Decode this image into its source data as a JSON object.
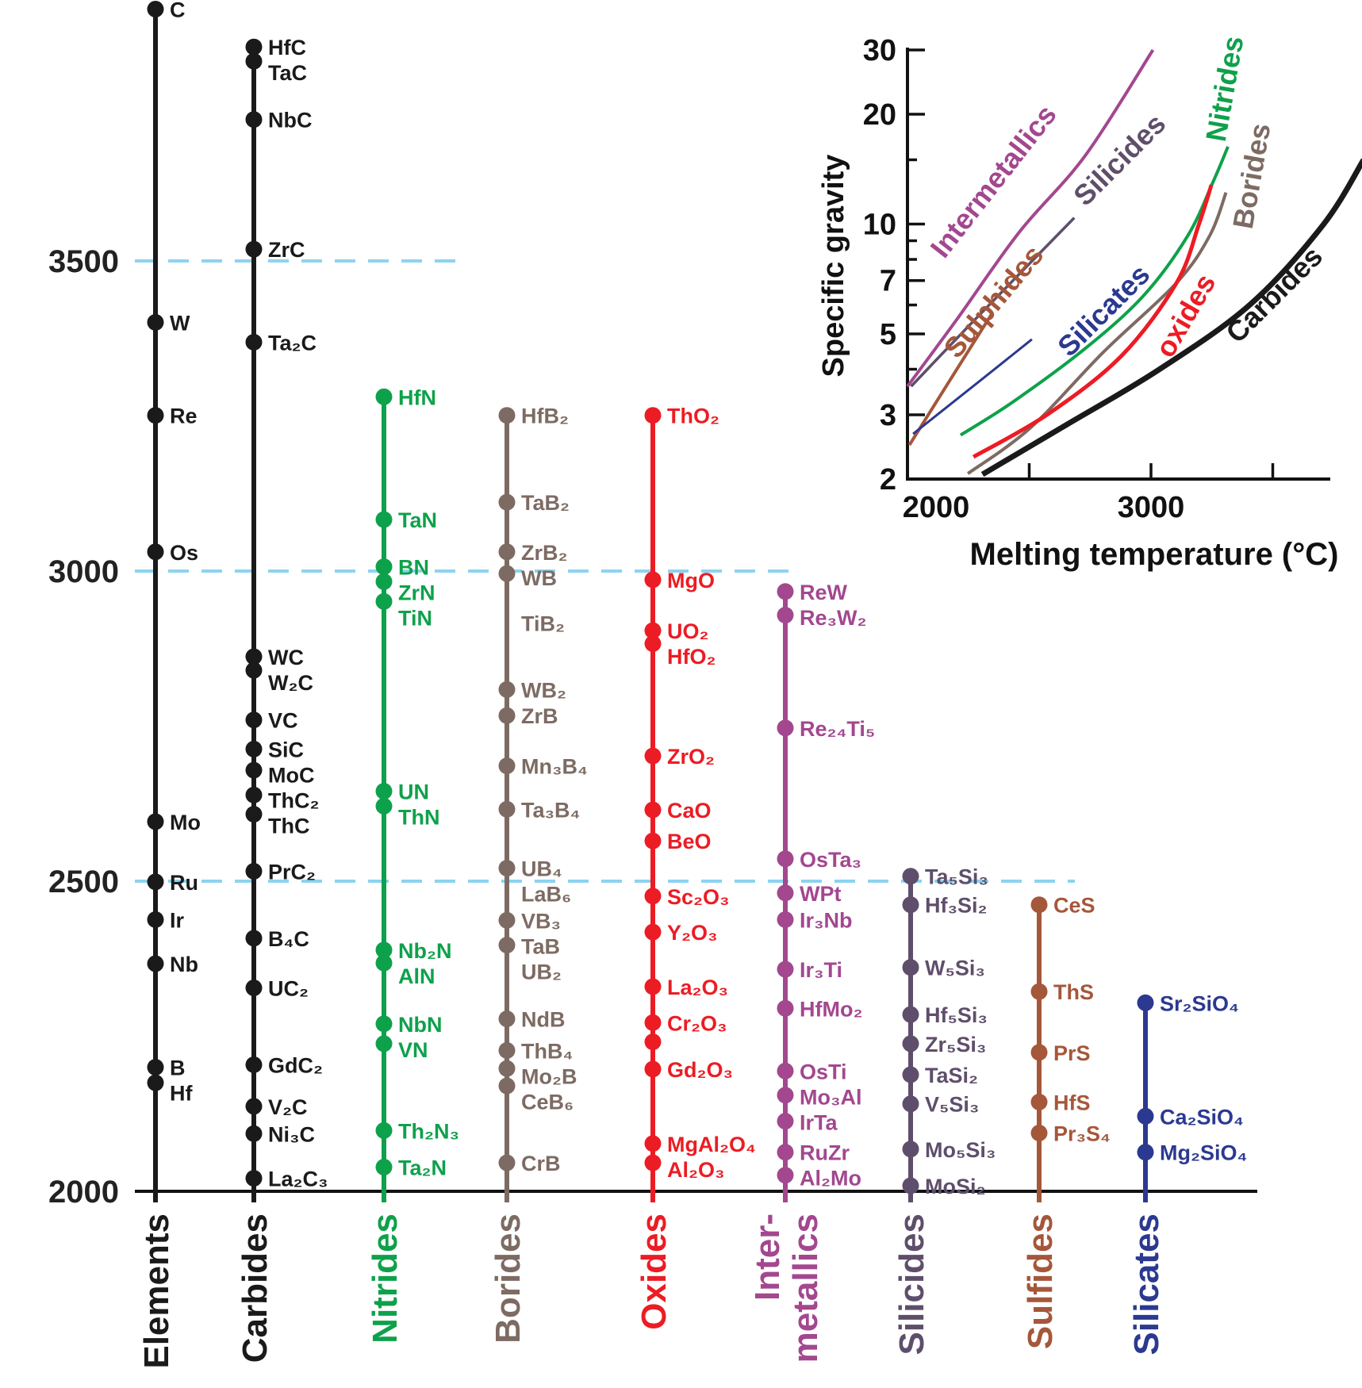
{
  "chart_data": [
    {
      "type": "scatter",
      "title": "",
      "ylabel": "",
      "ylim": [
        2000,
        3900
      ],
      "yticks": [
        2000,
        2500,
        3000,
        3500
      ],
      "dashed_gridlines": [
        3500,
        3000,
        2500
      ],
      "dash_color": "#8dd3f0",
      "categories": [
        {
          "label_lines": [
            "Elements"
          ],
          "color": "#1a1a1a",
          "points": [
            {
              "label": "C",
              "value": 3906
            },
            {
              "label": "W",
              "value": 3401
            },
            {
              "label": "Re",
              "value": 3251
            },
            {
              "label": "Os",
              "value": 3031
            },
            {
              "label": "Mo",
              "value": 2596
            },
            {
              "label": "Ru",
              "value": 2499
            },
            {
              "label": "Ir",
              "value": 2438
            },
            {
              "label": "Nb",
              "value": 2367
            },
            {
              "label": "B",
              "value": 2200
            },
            {
              "label": "Hf",
              "value": 2175
            }
          ]
        },
        {
          "label_lines": [
            "Carbides"
          ],
          "color": "#1a1a1a",
          "points": [
            {
              "label": "HfC",
              "value": 3845
            },
            {
              "label": "TaC",
              "value": 3822
            },
            {
              "label": "NbC",
              "value": 3728
            },
            {
              "label": "ZrC",
              "value": 3519
            },
            {
              "label": "Ta₂C",
              "value": 3369
            },
            {
              "label": "WC",
              "value": 2862
            },
            {
              "label": "W₂C",
              "value": 2840
            },
            {
              "label": "VC",
              "value": 2760
            },
            {
              "label": "SiC",
              "value": 2713
            },
            {
              "label": "MoC",
              "value": 2679
            },
            {
              "label": "ThC₂",
              "value": 2639
            },
            {
              "label": "ThC",
              "value": 2608
            },
            {
              "label": "PrC₂",
              "value": 2516
            },
            {
              "label": "B₄C",
              "value": 2408
            },
            {
              "label": "UC₂",
              "value": 2328
            },
            {
              "label": "GdC₂",
              "value": 2204
            },
            {
              "label": "V₂C",
              "value": 2137
            },
            {
              "label": "Ni₃C",
              "value": 2093
            },
            {
              "label": "La₂C₃",
              "value": 2021
            }
          ]
        },
        {
          "label_lines": [
            "Nitrides"
          ],
          "color": "#0ea14b",
          "points": [
            {
              "label": "HfN",
              "value": 3281
            },
            {
              "label": "TaN",
              "value": 3083
            },
            {
              "label": "BN",
              "value": 3007
            },
            {
              "label": "ZrN",
              "value": 2983
            },
            {
              "label": "TiN",
              "value": 2951
            },
            {
              "label": "UN",
              "value": 2645
            },
            {
              "label": "ThN",
              "value": 2621
            },
            {
              "label": "Nb₂N",
              "value": 2389
            },
            {
              "label": "AlN",
              "value": 2368
            },
            {
              "label": "NbN",
              "value": 2270
            },
            {
              "label": "VN",
              "value": 2238
            },
            {
              "label": "Th₂N₃",
              "value": 2098
            },
            {
              "label": "Ta₂N",
              "value": 2039
            }
          ]
        },
        {
          "label_lines": [
            "Borides"
          ],
          "color": "#7d6b63",
          "points": [
            {
              "label": "HfB₂",
              "value": 3251
            },
            {
              "label": "TaB₂",
              "value": 3111
            },
            {
              "label": "ZrB₂",
              "value": 3031
            },
            {
              "label": "WB",
              "value": 2996
            },
            {
              "label": "TiB₂",
              "value": 2916,
              "marker": false
            },
            {
              "label": "WB₂",
              "value": 2809
            },
            {
              "label": "ZrB",
              "value": 2767
            },
            {
              "label": "Mn₃B₄",
              "value": 2686
            },
            {
              "label": "Ta₃B₄",
              "value": 2616
            },
            {
              "label": "UB₄",
              "value": 2521
            },
            {
              "label": "LaB₆",
              "value": 2505,
              "marker": false
            },
            {
              "label": "VB₃",
              "value": 2437
            },
            {
              "label": "TaB",
              "value": 2418,
              "marker": false
            },
            {
              "label": "UB₂",
              "value": 2397
            },
            {
              "label": "NdB",
              "value": 2278
            },
            {
              "label": "ThB₄",
              "value": 2227
            },
            {
              "label": "Mo₂B",
              "value": 2198
            },
            {
              "label": "CeB₆",
              "value": 2170
            },
            {
              "label": "CrB",
              "value": 2046
            }
          ]
        },
        {
          "label_lines": [
            "Oxides"
          ],
          "color": "#ec1c24",
          "points": [
            {
              "label": "ThO₂",
              "value": 3251
            },
            {
              "label": "MgO",
              "value": 2986
            },
            {
              "label": "UO₂",
              "value": 2904
            },
            {
              "label": "HfO₂",
              "value": 2883
            },
            {
              "label": "ZrO₂",
              "value": 2702
            },
            {
              "label": "CaO",
              "value": 2615
            },
            {
              "label": "BeO",
              "value": 2565
            },
            {
              "label": "Sc₂O₃",
              "value": 2476
            },
            {
              "label": "Y₂O₃",
              "value": 2418
            },
            {
              "label": "La₂O₃",
              "value": 2330
            },
            {
              "label": "Cr₂O₃",
              "value": 2272
            },
            {
              "label": "",
              "value": 2241
            },
            {
              "label": "Gd₂O₃",
              "value": 2197
            },
            {
              "label": "MgAl₂O₄",
              "value": 2077
            },
            {
              "label": "Al₂O₃",
              "value": 2046
            }
          ]
        },
        {
          "label_lines": [
            "Inter-",
            "metallics"
          ],
          "color": "#a3478f",
          "points": [
            {
              "label": "ReW",
              "value": 2967
            },
            {
              "label": "Re₃W₂",
              "value": 2929
            },
            {
              "label": "Re₂₄Ti₅",
              "value": 2747
            },
            {
              "label": "OsTa₃",
              "value": 2536
            },
            {
              "label": "WPt",
              "value": 2481
            },
            {
              "label": "Ir₃Nb",
              "value": 2438
            },
            {
              "label": "Ir₃Ti",
              "value": 2358
            },
            {
              "label": "HfMo₂",
              "value": 2295
            },
            {
              "label": "OsTi",
              "value": 2194
            },
            {
              "label": "Mo₃Al",
              "value": 2155
            },
            {
              "label": "IrTa",
              "value": 2113
            },
            {
              "label": "RuZr",
              "value": 2063
            },
            {
              "label": "Al₂Mo",
              "value": 2026
            }
          ]
        },
        {
          "label_lines": [
            "Silicides"
          ],
          "color": "#5f4e6b",
          "points": [
            {
              "label": "Ta₅Si₃",
              "value": 2508
            },
            {
              "label": "Hf₃Si₂",
              "value": 2462
            },
            {
              "label": "W₅Si₃",
              "value": 2361
            },
            {
              "label": "Hf₅Si₃",
              "value": 2285
            },
            {
              "label": "Zr₅Si₃",
              "value": 2238
            },
            {
              "label": "TaSi₂",
              "value": 2188
            },
            {
              "label": "V₅Si₃",
              "value": 2141
            },
            {
              "label": "Mo₅Si₃",
              "value": 2068
            },
            {
              "label": "MoSi₂",
              "value": 2009
            }
          ]
        },
        {
          "label_lines": [
            "Sulfides"
          ],
          "color": "#a5573a",
          "points": [
            {
              "label": "CeS",
              "value": 2462
            },
            {
              "label": "ThS",
              "value": 2322
            },
            {
              "label": "PrS",
              "value": 2224
            },
            {
              "label": "HfS",
              "value": 2144
            },
            {
              "label": "Pr₃S₄",
              "value": 2094
            }
          ]
        },
        {
          "label_lines": [
            "Silicates"
          ],
          "color": "#2b3990",
          "points": [
            {
              "label": "Sr₂SiO₄",
              "value": 2304
            },
            {
              "label": "Ca₂SiO₄",
              "value": 2121
            },
            {
              "label": "Mg₂SiO₄",
              "value": 2063
            }
          ]
        }
      ]
    },
    {
      "type": "line",
      "title": "",
      "xlabel": "Melting temperature (°C)",
      "ylabel": "Specific gravity",
      "xlim": [
        2000,
        3750
      ],
      "ylim": [
        2,
        30
      ],
      "yscale": "log",
      "xticks": [
        2000,
        2500,
        3000,
        3500
      ],
      "xtick_labels": [
        "2000",
        "",
        "3000",
        ""
      ],
      "yticks": [
        2,
        3,
        4,
        5,
        6,
        7,
        8,
        9,
        10,
        15,
        20,
        30
      ],
      "ytick_labels": [
        "2",
        "3",
        "",
        "5",
        "",
        "7",
        "",
        "",
        "10",
        "",
        "20",
        "30"
      ],
      "grid": false,
      "series": [
        {
          "name": "Intermetallics",
          "color": "#a3478f",
          "points": [
            [
              2000,
              3.59
            ],
            [
              2203,
              5.48
            ],
            [
              2459,
              9.5
            ],
            [
              2730,
              15.4
            ],
            [
              3008,
              30
            ]
          ]
        },
        {
          "name": "Silicides",
          "color": "#5f4e6b",
          "points": [
            [
              2015,
              3.59
            ],
            [
              2278,
              5.48
            ],
            [
              2685,
              10.4
            ]
          ]
        },
        {
          "name": "Sulphides",
          "color": "#a5573a",
          "points": [
            [
              2008,
              2.48
            ],
            [
              2173,
              3.72
            ],
            [
              2346,
              5.67
            ]
          ]
        },
        {
          "name": "Silicates",
          "color": "#2b3990",
          "points": [
            [
              2023,
              2.66
            ],
            [
              2278,
              3.63
            ],
            [
              2511,
              4.83
            ]
          ]
        },
        {
          "name": "Nitrides",
          "color": "#0ea14b",
          "points": [
            [
              2218,
              2.64
            ],
            [
              2429,
              3.24
            ],
            [
              2730,
              4.56
            ],
            [
              2970,
              6.37
            ],
            [
              3151,
              9.29
            ],
            [
              3256,
              13.1
            ],
            [
              3316,
              16.3
            ]
          ]
        },
        {
          "name": "Borides",
          "color": "#7d6b63",
          "points": [
            [
              2248,
              2.07
            ],
            [
              2504,
              2.76
            ],
            [
              2805,
              4.46
            ],
            [
              3105,
              6.9
            ],
            [
              3241,
              9.29
            ],
            [
              3308,
              12.2
            ]
          ]
        },
        {
          "name": "oxides",
          "color": "#ec1c24",
          "points": [
            [
              2271,
              2.3
            ],
            [
              2579,
              3.02
            ],
            [
              2880,
              4.36
            ],
            [
              3105,
              6.9
            ],
            [
              3196,
              9.95
            ],
            [
              3248,
              12.8
            ]
          ]
        },
        {
          "name": "Carbides",
          "color": "#1a1a1a",
          "points": [
            [
              2308,
              2.06
            ],
            [
              2654,
              2.82
            ],
            [
              3030,
              3.98
            ],
            [
              3406,
              6.01
            ],
            [
              3707,
              9.95
            ],
            [
              3873,
              15.0
            ]
          ]
        }
      ]
    }
  ]
}
